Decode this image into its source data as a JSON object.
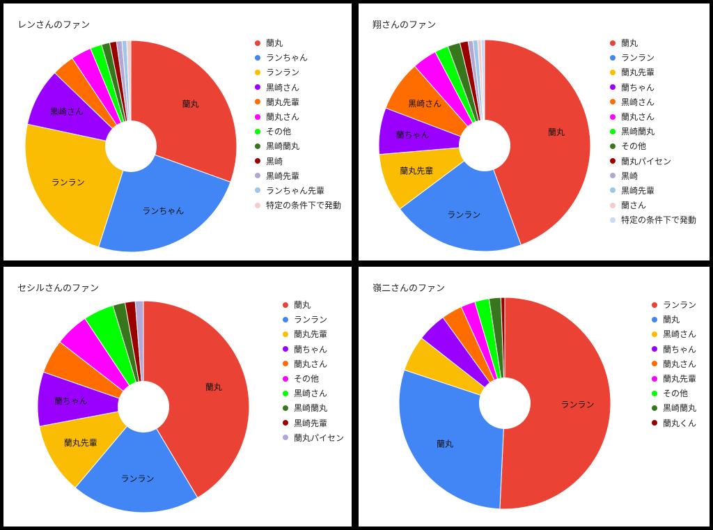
{
  "chart_data": [
    {
      "type": "pie",
      "title": "レンさんのファン",
      "donut_hole": true,
      "legend_position": "right",
      "slices": [
        {
          "label": "蘭丸",
          "value": 29.3,
          "color": "#ea4335",
          "show_label": true
        },
        {
          "label": "ランちゃん",
          "value": 23.5,
          "color": "#4285f4",
          "show_label": true
        },
        {
          "label": "ランラン",
          "value": 22.5,
          "color": "#fbbc04",
          "show_label": true
        },
        {
          "label": "黒崎さん",
          "value": 8.5,
          "color": "#9900ff",
          "show_label": true
        },
        {
          "label": "蘭丸先輩",
          "value": 3.3,
          "color": "#ff6d01",
          "show_label": false
        },
        {
          "label": "蘭丸さん",
          "value": 3.0,
          "color": "#ff00ff",
          "show_label": false
        },
        {
          "label": "その他",
          "value": 1.7,
          "color": "#00ff00",
          "show_label": false
        },
        {
          "label": "黒崎蘭丸",
          "value": 1.2,
          "color": "#38761d",
          "show_label": false
        },
        {
          "label": "黒崎",
          "value": 1.0,
          "color": "#990000",
          "show_label": false
        },
        {
          "label": "黒崎先輩",
          "value": 0.8,
          "color": "#b4a7d6",
          "show_label": false
        },
        {
          "label": "ランちゃん先輩",
          "value": 0.7,
          "color": "#9fc5e8",
          "show_label": false
        },
        {
          "label": "特定の条件下で発動",
          "value": 0.6,
          "color": "#f4cccc",
          "show_label": false
        }
      ]
    },
    {
      "type": "pie",
      "title": "翔さんのファン",
      "donut_hole": true,
      "legend_position": "right",
      "slices": [
        {
          "label": "蘭丸",
          "value": 42.5,
          "color": "#ea4335",
          "show_label": true
        },
        {
          "label": "ランラン",
          "value": 19.5,
          "color": "#4285f4",
          "show_label": true
        },
        {
          "label": "蘭丸先輩",
          "value": 8.5,
          "color": "#fbbc04",
          "show_label": true
        },
        {
          "label": "蘭ちゃん",
          "value": 6.8,
          "color": "#9900ff",
          "show_label": true
        },
        {
          "label": "黒崎さん",
          "value": 7.4,
          "color": "#ff6d01",
          "show_label": true
        },
        {
          "label": "蘭丸さん",
          "value": 3.6,
          "color": "#ff00ff",
          "show_label": false
        },
        {
          "label": "黒崎蘭丸",
          "value": 2.0,
          "color": "#00ff00",
          "show_label": false
        },
        {
          "label": "その他",
          "value": 1.8,
          "color": "#38761d",
          "show_label": false
        },
        {
          "label": "蘭丸パイセン",
          "value": 1.2,
          "color": "#990000",
          "show_label": false
        },
        {
          "label": "黒崎",
          "value": 0.7,
          "color": "#b4a7d6",
          "show_label": false
        },
        {
          "label": "黒崎先輩",
          "value": 0.7,
          "color": "#9fc5e8",
          "show_label": false
        },
        {
          "label": "蘭さん",
          "value": 0.5,
          "color": "#f4cccc",
          "show_label": false
        },
        {
          "label": "特定の条件下で発動",
          "value": 0.5,
          "color": "#c9daf8",
          "show_label": false
        }
      ]
    },
    {
      "type": "pie",
      "title": "セシルさんのファン",
      "donut_hole": true,
      "legend_position": "right",
      "slices": [
        {
          "label": "蘭丸",
          "value": 40.0,
          "color": "#ea4335",
          "show_label": true
        },
        {
          "label": "ランラン",
          "value": 19.0,
          "color": "#4285f4",
          "show_label": true
        },
        {
          "label": "蘭丸先輩",
          "value": 10.5,
          "color": "#fbbc04",
          "show_label": true
        },
        {
          "label": "蘭ちゃん",
          "value": 8.0,
          "color": "#9900ff",
          "show_label": true
        },
        {
          "label": "蘭丸さん",
          "value": 5.0,
          "color": "#ff6d01",
          "show_label": false
        },
        {
          "label": "その他",
          "value": 5.0,
          "color": "#ff00ff",
          "show_label": false
        },
        {
          "label": "黒崎さん",
          "value": 4.5,
          "color": "#00ff00",
          "show_label": false
        },
        {
          "label": "黒崎蘭丸",
          "value": 1.8,
          "color": "#38761d",
          "show_label": false
        },
        {
          "label": "黒崎先輩",
          "value": 1.5,
          "color": "#990000",
          "show_label": false
        },
        {
          "label": "蘭丸パイセン",
          "value": 1.2,
          "color": "#b4a7d6",
          "show_label": false
        }
      ]
    },
    {
      "type": "pie",
      "title": "嶺二さんのファン",
      "donut_hole": true,
      "legend_position": "right",
      "slices": [
        {
          "label": "ランラン",
          "value": 51.0,
          "color": "#ea4335",
          "show_label": true
        },
        {
          "label": "蘭丸",
          "value": 29.5,
          "color": "#4285f4",
          "show_label": true
        },
        {
          "label": "黒崎さん",
          "value": 5.5,
          "color": "#fbbc04",
          "show_label": false
        },
        {
          "label": "蘭ちゃん",
          "value": 4.5,
          "color": "#9900ff",
          "show_label": false
        },
        {
          "label": "蘭丸さん",
          "value": 3.2,
          "color": "#ff6d01",
          "show_label": false
        },
        {
          "label": "蘭丸先輩",
          "value": 2.2,
          "color": "#ff00ff",
          "show_label": false
        },
        {
          "label": "その他",
          "value": 2.2,
          "color": "#00ff00",
          "show_label": false
        },
        {
          "label": "黒崎蘭丸",
          "value": 1.8,
          "color": "#38761d",
          "show_label": false
        },
        {
          "label": "蘭丸くん",
          "value": 0.6,
          "color": "#990000",
          "show_label": false
        }
      ]
    }
  ]
}
